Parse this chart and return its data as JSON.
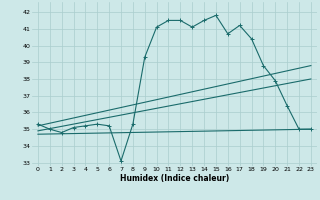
{
  "xlabel": "Humidex (Indice chaleur)",
  "bg_color": "#cde8e8",
  "grid_color": "#aacece",
  "line_color": "#1a6b6b",
  "xlim": [
    -0.5,
    23.5
  ],
  "ylim": [
    32.8,
    42.6
  ],
  "yticks": [
    33,
    34,
    35,
    36,
    37,
    38,
    39,
    40,
    41,
    42
  ],
  "xticks": [
    0,
    1,
    2,
    3,
    4,
    5,
    6,
    7,
    8,
    9,
    10,
    11,
    12,
    13,
    14,
    15,
    16,
    17,
    18,
    19,
    20,
    21,
    22,
    23
  ],
  "series1_x": [
    0,
    1,
    2,
    3,
    4,
    5,
    6,
    7,
    8,
    9,
    10,
    11,
    12,
    13,
    14,
    15,
    16,
    17,
    18,
    19,
    20,
    21,
    22,
    23
  ],
  "series1_y": [
    35.3,
    35.0,
    34.8,
    35.1,
    35.2,
    35.3,
    35.2,
    33.1,
    35.3,
    39.3,
    41.1,
    41.5,
    41.5,
    41.1,
    41.5,
    41.8,
    40.7,
    41.2,
    40.4,
    38.8,
    37.9,
    36.4,
    35.0,
    35.0
  ],
  "series2_x": [
    0,
    23
  ],
  "series2_y": [
    34.7,
    35.0
  ],
  "series3_x": [
    0,
    23
  ],
  "series3_y": [
    34.9,
    38.0
  ],
  "series4_x": [
    0,
    23
  ],
  "series4_y": [
    35.2,
    38.8
  ]
}
